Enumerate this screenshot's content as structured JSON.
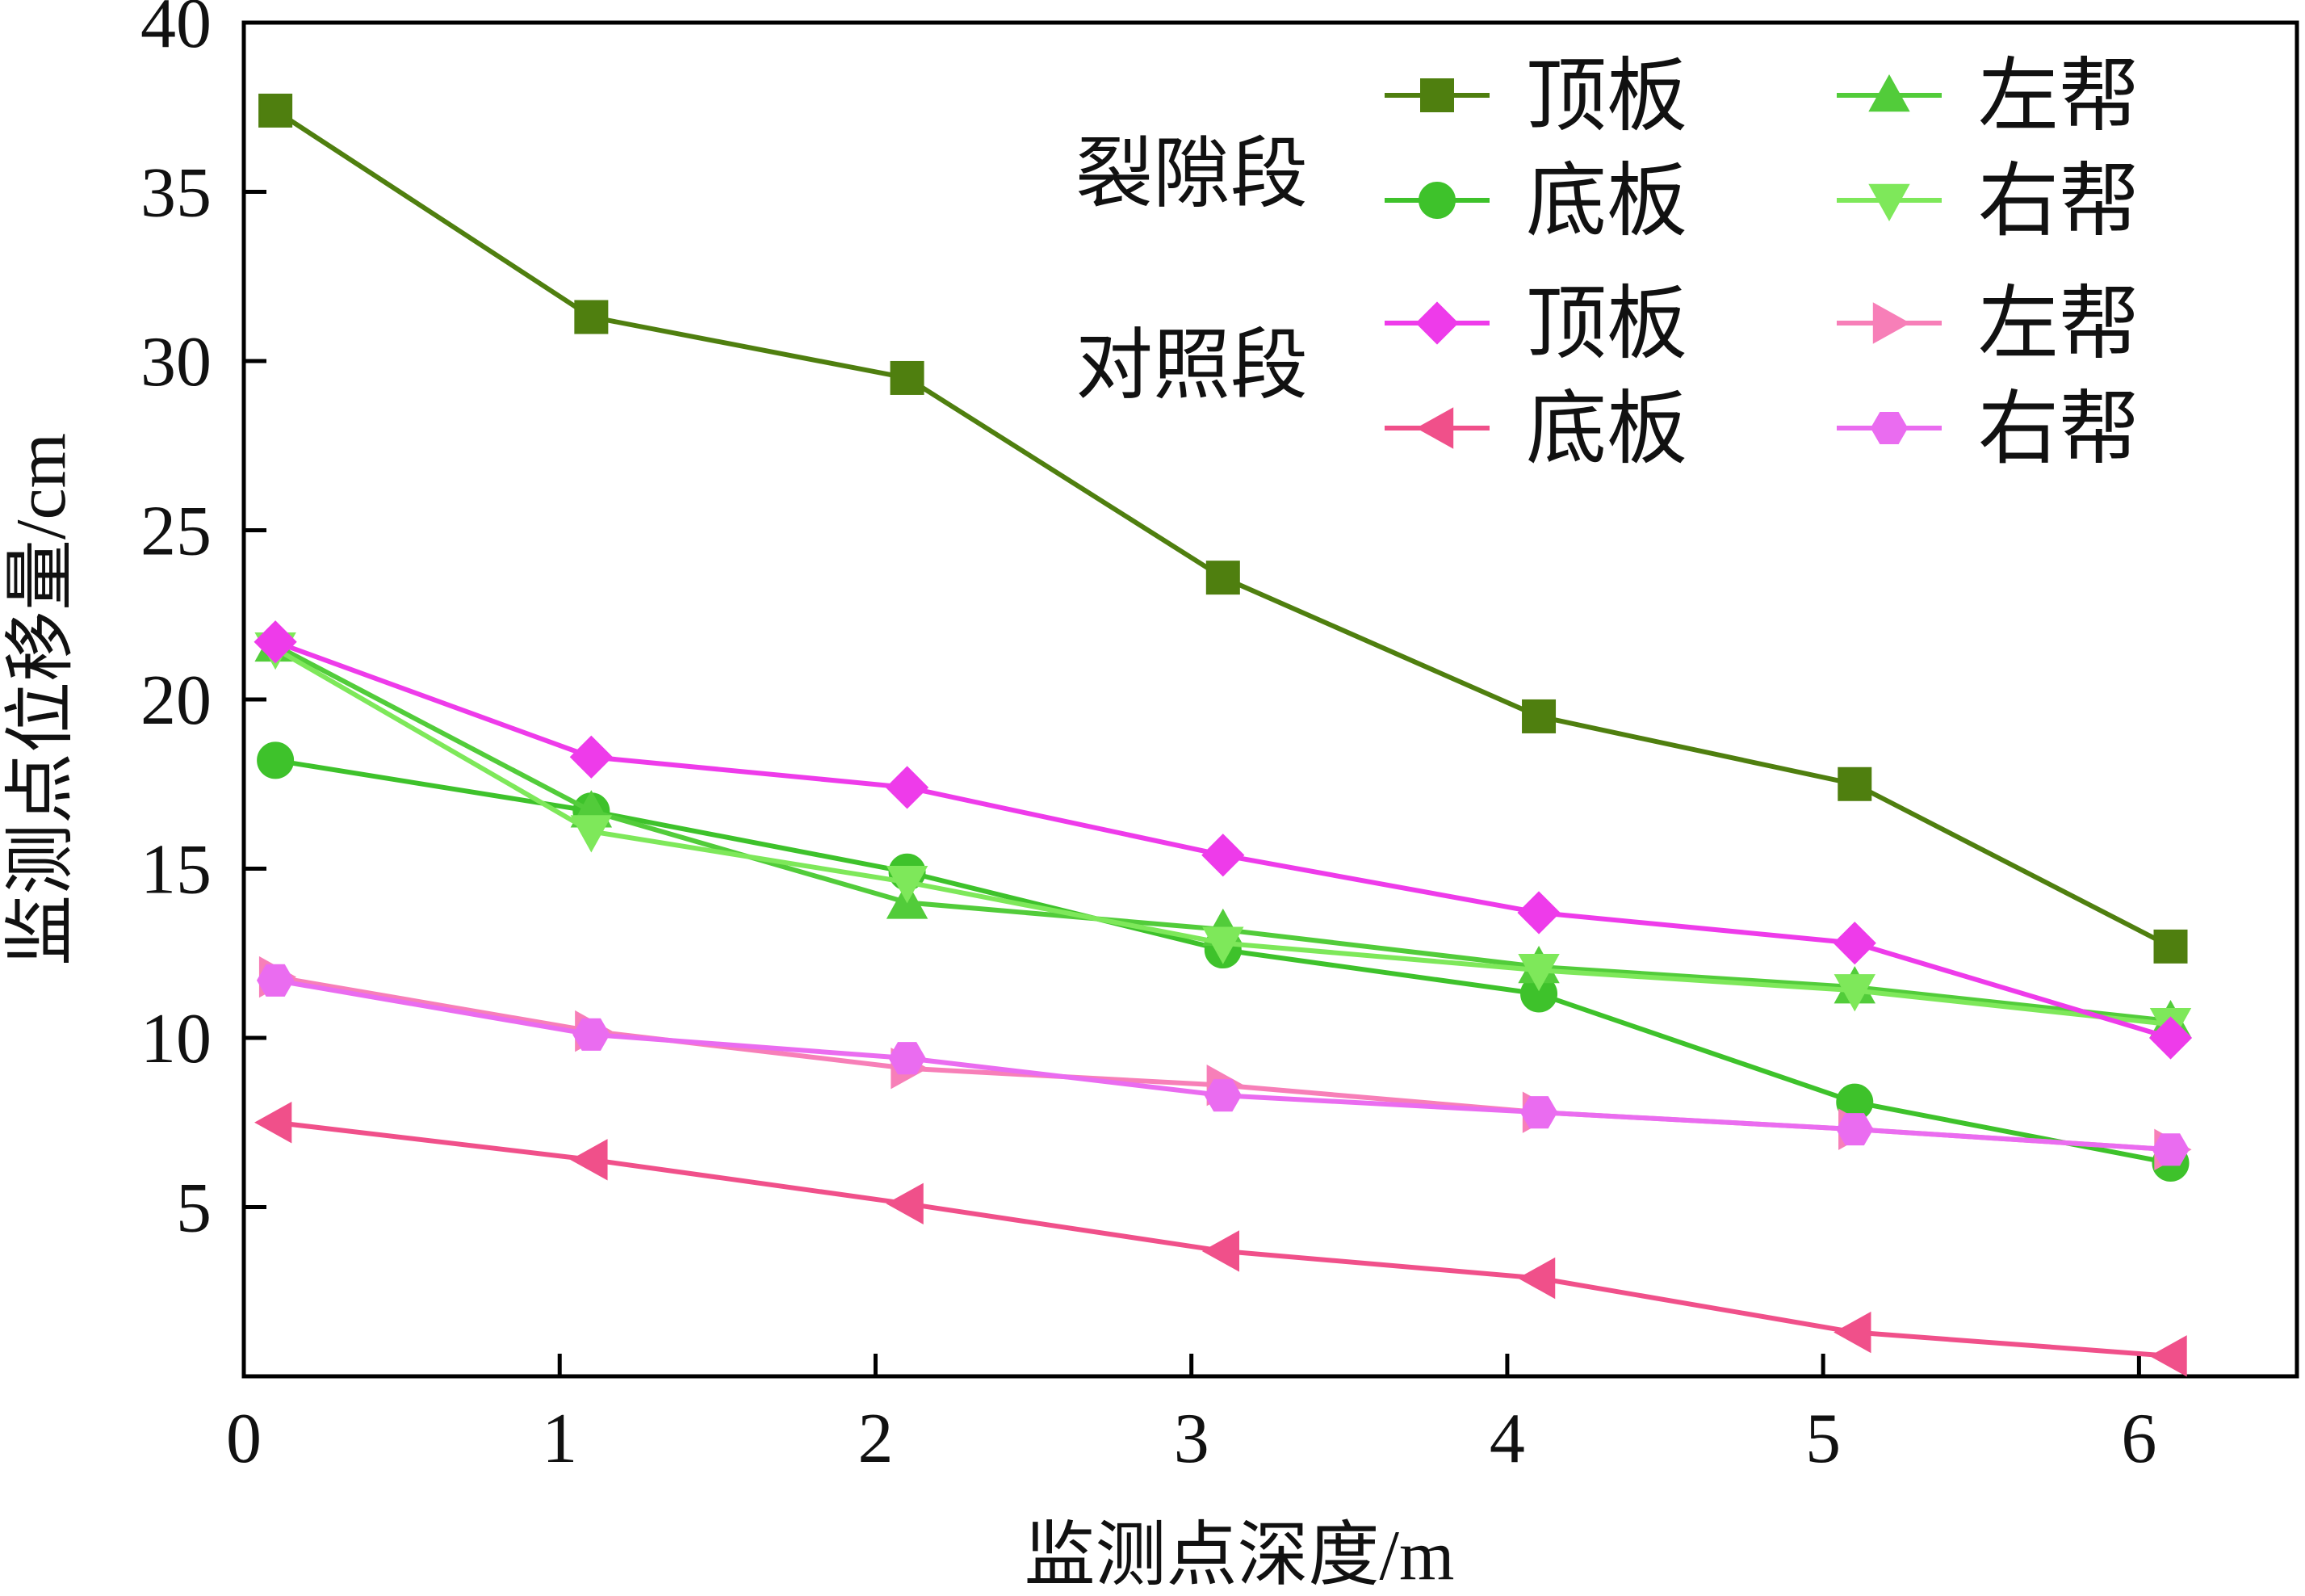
{
  "chart_data": {
    "type": "line",
    "xlabel": "监测点深度/m",
    "ylabel": "监测点位移量/cm",
    "xlim": [
      0,
      6.5
    ],
    "ylim": [
      0,
      40
    ],
    "xticks": [
      0,
      1,
      2,
      3,
      4,
      5,
      6
    ],
    "yticks": [
      5,
      10,
      15,
      20,
      25,
      30,
      35,
      40
    ],
    "x_tick_labels": [
      "0",
      "1",
      "2",
      "3",
      "4",
      "5",
      "6"
    ],
    "y_tick_labels": [
      "5",
      "10",
      "15",
      "20",
      "25",
      "30",
      "35",
      "40"
    ],
    "x": [
      0.1,
      1.1,
      2.1,
      3.1,
      4.1,
      5.1,
      6.1
    ],
    "grid": false,
    "legend_position": "top-right",
    "legend_groups": [
      {
        "label": "裂隙段",
        "series_indices": [
          0,
          1,
          2,
          3
        ]
      },
      {
        "label": "对照段",
        "series_indices": [
          4,
          5,
          6,
          7
        ]
      }
    ],
    "series": [
      {
        "name": "顶板",
        "color": "#4f7f0f",
        "marker": "square",
        "values": [
          37.4,
          31.3,
          29.5,
          23.6,
          19.5,
          17.5,
          12.7
        ]
      },
      {
        "name": "底板",
        "color": "#3ec22b",
        "marker": "circle",
        "values": [
          18.2,
          16.7,
          14.9,
          12.6,
          11.3,
          8.1,
          6.3
        ]
      },
      {
        "name": "左帮",
        "color": "#52cc3a",
        "marker": "triangle-up",
        "values": [
          21.6,
          16.7,
          14.0,
          13.2,
          12.1,
          11.5,
          10.5
        ]
      },
      {
        "name": "右帮",
        "color": "#7ee85a",
        "marker": "triangle-down",
        "values": [
          21.5,
          16.1,
          14.6,
          12.8,
          12.0,
          11.4,
          10.4
        ]
      },
      {
        "name": "顶板",
        "color": "#ee3bea",
        "marker": "diamond",
        "values": [
          21.7,
          18.3,
          17.4,
          15.4,
          13.7,
          12.8,
          10.0
        ]
      },
      {
        "name": "底板",
        "color": "#f0508a",
        "marker": "triangle-left",
        "values": [
          7.5,
          6.4,
          5.1,
          3.7,
          2.9,
          1.3,
          0.6
        ]
      },
      {
        "name": "左帮",
        "color": "#f77fb8",
        "marker": "triangle-right",
        "values": [
          11.8,
          10.2,
          9.1,
          8.6,
          7.8,
          7.3,
          6.7
        ]
      },
      {
        "name": "右帮",
        "color": "#ea6cf0",
        "marker": "hexagon",
        "values": [
          11.7,
          10.1,
          9.4,
          8.3,
          7.8,
          7.3,
          6.7
        ]
      }
    ]
  }
}
